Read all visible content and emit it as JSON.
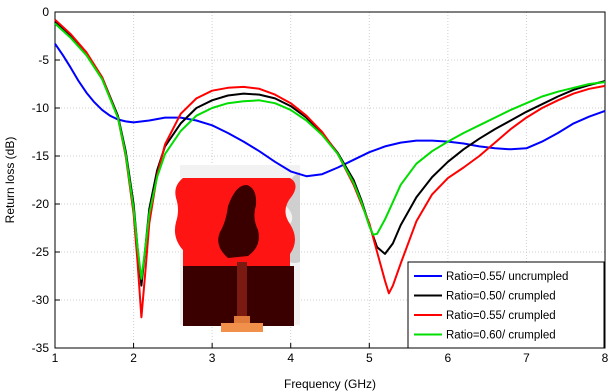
{
  "chart_data": {
    "type": "line",
    "xlabel": "Frequency (GHz)",
    "ylabel": "Return loss (dB)",
    "xlim": [
      1,
      8
    ],
    "ylim": [
      -35,
      0
    ],
    "xticks": [
      1,
      2,
      3,
      4,
      5,
      6,
      7,
      8
    ],
    "yticks": [
      0,
      -5,
      -10,
      -15,
      -20,
      -25,
      -30,
      -35
    ],
    "grid": true,
    "legend_position": "bottom-right",
    "series": [
      {
        "name": "Ratio=0.55/ uncrumpled",
        "color": "#0000ff",
        "x": [
          1.0,
          1.1,
          1.2,
          1.3,
          1.4,
          1.5,
          1.6,
          1.7,
          1.8,
          1.9,
          2.0,
          2.2,
          2.4,
          2.6,
          2.8,
          3.0,
          3.2,
          3.4,
          3.6,
          3.8,
          4.0,
          4.2,
          4.4,
          4.6,
          4.8,
          5.0,
          5.2,
          5.4,
          5.6,
          5.8,
          6.0,
          6.2,
          6.4,
          6.6,
          6.8,
          7.0,
          7.2,
          7.4,
          7.6,
          7.8,
          8.0
        ],
        "y": [
          -3.3,
          -4.5,
          -5.8,
          -7.2,
          -8.4,
          -9.4,
          -10.2,
          -10.8,
          -11.2,
          -11.4,
          -11.5,
          -11.3,
          -11.0,
          -11.0,
          -11.3,
          -11.8,
          -12.6,
          -13.5,
          -14.5,
          -15.6,
          -16.6,
          -17.1,
          -16.9,
          -16.2,
          -15.4,
          -14.6,
          -14.0,
          -13.6,
          -13.4,
          -13.4,
          -13.5,
          -13.7,
          -14.0,
          -14.2,
          -14.3,
          -14.2,
          -13.5,
          -12.6,
          -11.6,
          -10.9,
          -10.3
        ]
      },
      {
        "name": "Ratio=0.50/ crumpled",
        "color": "#000000",
        "x": [
          1.0,
          1.2,
          1.4,
          1.6,
          1.8,
          1.9,
          2.0,
          2.05,
          2.1,
          2.15,
          2.2,
          2.3,
          2.4,
          2.6,
          2.8,
          3.0,
          3.2,
          3.4,
          3.6,
          3.8,
          4.0,
          4.2,
          4.4,
          4.6,
          4.8,
          4.9,
          5.0,
          5.1,
          5.2,
          5.3,
          5.4,
          5.6,
          5.8,
          6.0,
          6.2,
          6.4,
          6.6,
          6.8,
          7.0,
          7.2,
          7.4,
          7.6,
          7.8,
          8.0
        ],
        "y": [
          -1.0,
          -2.5,
          -4.3,
          -6.8,
          -10.8,
          -14.5,
          -20.0,
          -24.5,
          -28.5,
          -24.5,
          -20.5,
          -16.5,
          -14.0,
          -11.6,
          -10.0,
          -9.2,
          -8.7,
          -8.5,
          -8.6,
          -9.0,
          -9.8,
          -11.0,
          -12.6,
          -14.7,
          -17.5,
          -19.6,
          -22.2,
          -24.5,
          -25.2,
          -24.1,
          -22.2,
          -19.3,
          -17.2,
          -15.6,
          -14.3,
          -13.2,
          -12.2,
          -11.3,
          -10.4,
          -9.6,
          -8.8,
          -8.1,
          -7.6,
          -7.2
        ]
      },
      {
        "name": "Ratio=0.55/ crumpled",
        "color": "#ff0000",
        "x": [
          1.0,
          1.2,
          1.4,
          1.6,
          1.8,
          1.9,
          2.0,
          2.05,
          2.1,
          2.15,
          2.2,
          2.3,
          2.4,
          2.6,
          2.8,
          3.0,
          3.2,
          3.4,
          3.6,
          3.8,
          4.0,
          4.2,
          4.4,
          4.6,
          4.8,
          5.0,
          5.1,
          5.2,
          5.25,
          5.3,
          5.4,
          5.6,
          5.8,
          6.0,
          6.2,
          6.4,
          6.6,
          6.8,
          7.0,
          7.2,
          7.4,
          7.6,
          7.8,
          8.0
        ],
        "y": [
          -0.8,
          -2.3,
          -4.2,
          -6.8,
          -11.0,
          -15.0,
          -21.0,
          -26.0,
          -31.8,
          -27.0,
          -22.0,
          -17.0,
          -13.8,
          -10.6,
          -9.0,
          -8.2,
          -7.9,
          -7.8,
          -8.0,
          -8.6,
          -9.5,
          -10.8,
          -12.5,
          -14.8,
          -18.0,
          -22.0,
          -25.0,
          -28.0,
          -29.3,
          -28.5,
          -26.2,
          -21.8,
          -19.0,
          -17.3,
          -16.2,
          -15.0,
          -13.6,
          -12.2,
          -11.0,
          -10.0,
          -9.2,
          -8.5,
          -8.0,
          -7.7
        ]
      },
      {
        "name": "Ratio=0.60/ crumpled",
        "color": "#00dd00",
        "x": [
          1.0,
          1.2,
          1.4,
          1.6,
          1.8,
          1.9,
          2.0,
          2.05,
          2.1,
          2.15,
          2.2,
          2.3,
          2.4,
          2.6,
          2.8,
          3.0,
          3.2,
          3.4,
          3.6,
          3.8,
          4.0,
          4.2,
          4.4,
          4.6,
          4.8,
          4.9,
          5.0,
          5.05,
          5.1,
          5.2,
          5.3,
          5.4,
          5.6,
          5.8,
          6.0,
          6.2,
          6.4,
          6.6,
          6.8,
          7.0,
          7.2,
          7.4,
          7.6,
          7.8,
          8.0
        ],
        "y": [
          -1.2,
          -2.7,
          -4.5,
          -7.0,
          -11.0,
          -14.8,
          -20.5,
          -24.5,
          -27.8,
          -24.5,
          -21.0,
          -17.2,
          -14.8,
          -12.4,
          -10.8,
          -10.0,
          -9.5,
          -9.3,
          -9.2,
          -9.5,
          -10.2,
          -11.3,
          -12.8,
          -14.8,
          -17.8,
          -19.8,
          -22.3,
          -23.2,
          -23.1,
          -21.6,
          -19.8,
          -18.0,
          -15.8,
          -14.5,
          -13.5,
          -12.6,
          -11.8,
          -11.0,
          -10.2,
          -9.5,
          -8.8,
          -8.3,
          -7.9,
          -7.5,
          -7.3
        ]
      }
    ]
  }
}
